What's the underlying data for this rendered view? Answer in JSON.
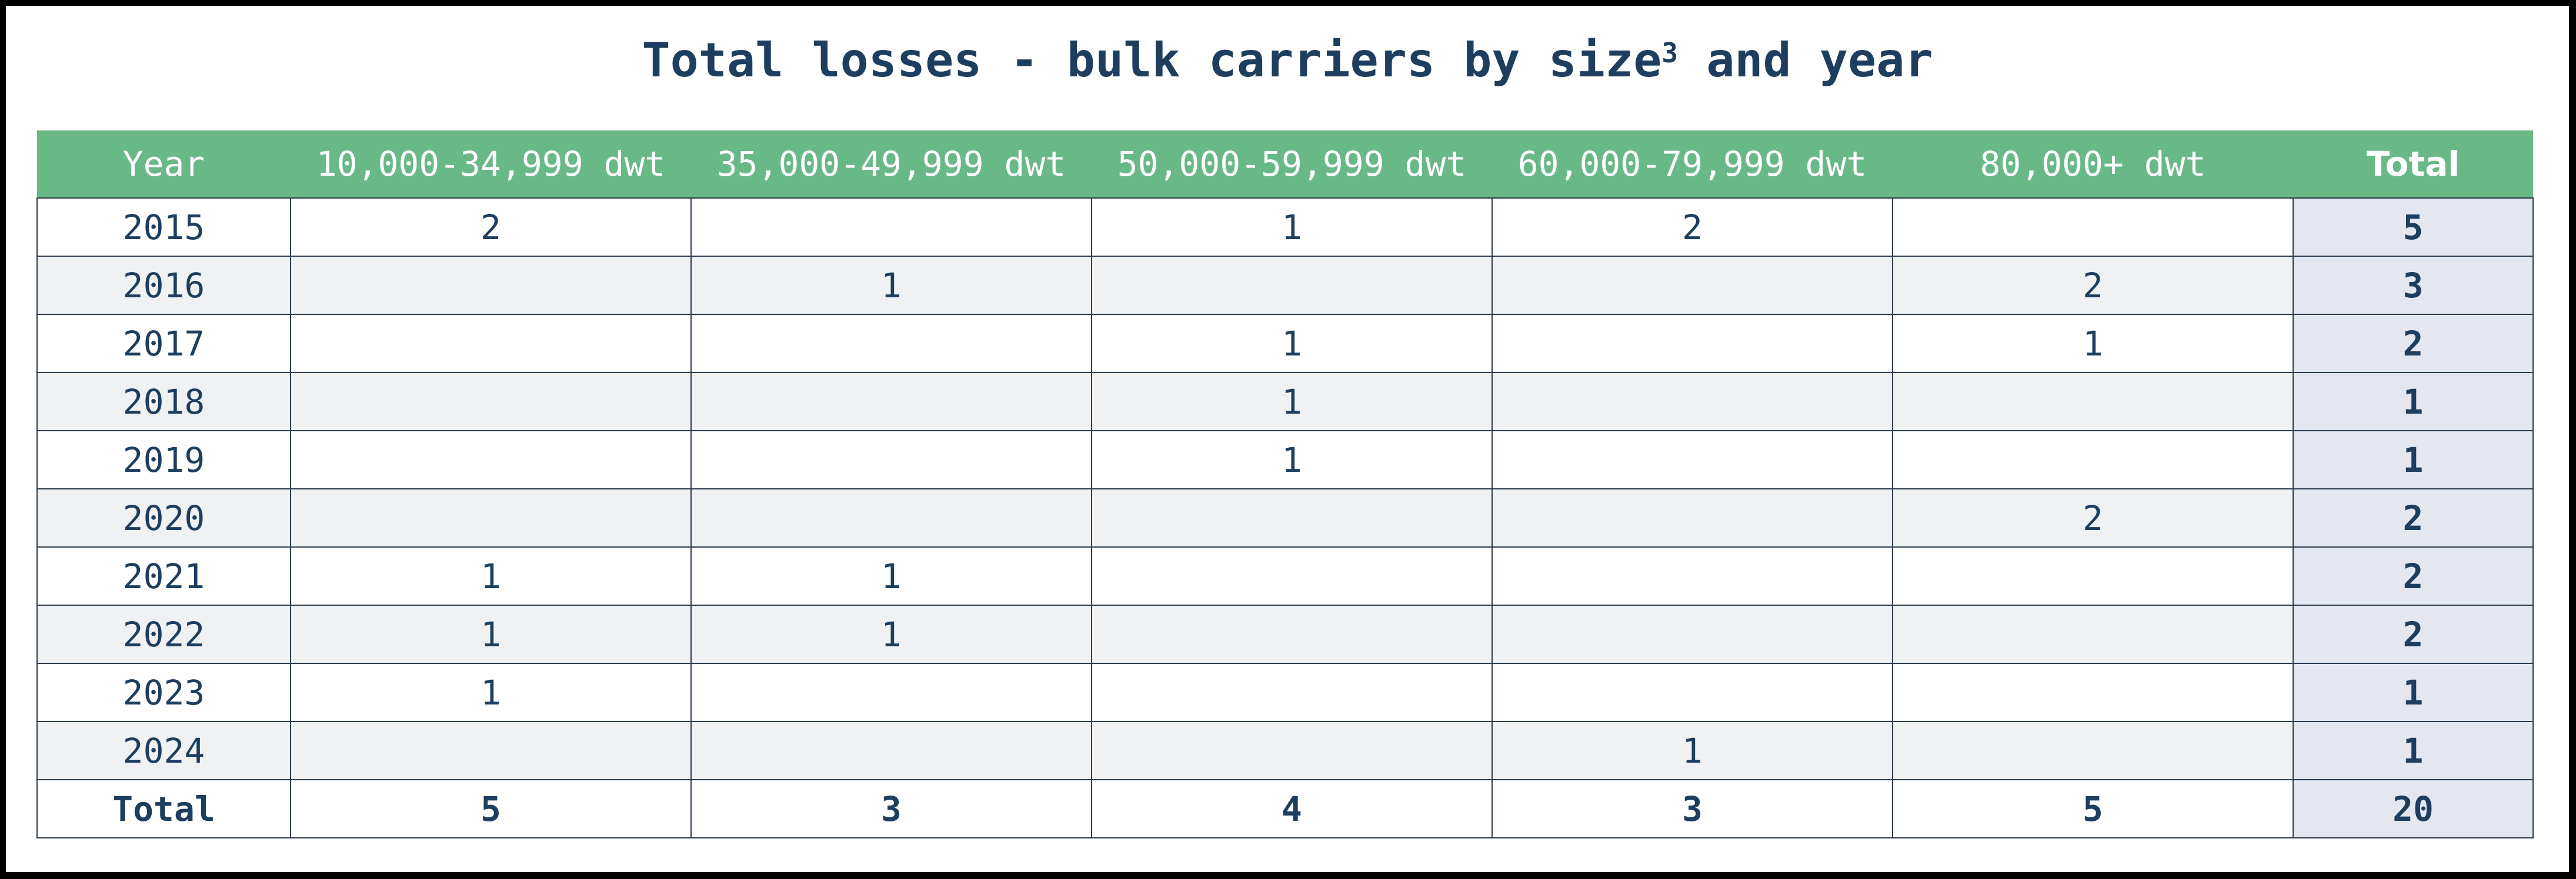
{
  "title": "Total losses - bulk carriers by size",
  "title_superscript": "3",
  "colors": {
    "header_bg": "#69b987",
    "header_text": "#ffffff",
    "text": "#1d3e5e",
    "total_column_bg": "#e4e7f0"
  },
  "chart_data": {
    "type": "table",
    "title": "Total losses - bulk carriers by size³ and year",
    "columns": [
      "Year",
      "10,000-34,999 dwt",
      "35,000-49,999 dwt",
      "50,000-59,999 dwt",
      "60,000-79,999 dwt",
      "80,000+ dwt",
      "Total"
    ],
    "rows": [
      [
        "2015",
        "2",
        "",
        "1",
        "2",
        "",
        "5"
      ],
      [
        "2016",
        "",
        "1",
        "",
        "",
        "2",
        "3"
      ],
      [
        "2017",
        "",
        "",
        "1",
        "",
        "1",
        "2"
      ],
      [
        "2018",
        "",
        "",
        "1",
        "",
        "",
        "1"
      ],
      [
        "2019",
        "",
        "",
        "1",
        "",
        "",
        "1"
      ],
      [
        "2020",
        "",
        "",
        "",
        "",
        "2",
        "2"
      ],
      [
        "2021",
        "1",
        "1",
        "",
        "",
        "",
        "2"
      ],
      [
        "2022",
        "1",
        "1",
        "",
        "",
        "",
        "2"
      ],
      [
        "2023",
        "1",
        "",
        "",
        "",
        "",
        "1"
      ],
      [
        "2024",
        "",
        "",
        "",
        "1",
        "",
        "1"
      ]
    ],
    "total_row": [
      "Total",
      "5",
      "3",
      "4",
      "3",
      "5",
      "20"
    ]
  }
}
